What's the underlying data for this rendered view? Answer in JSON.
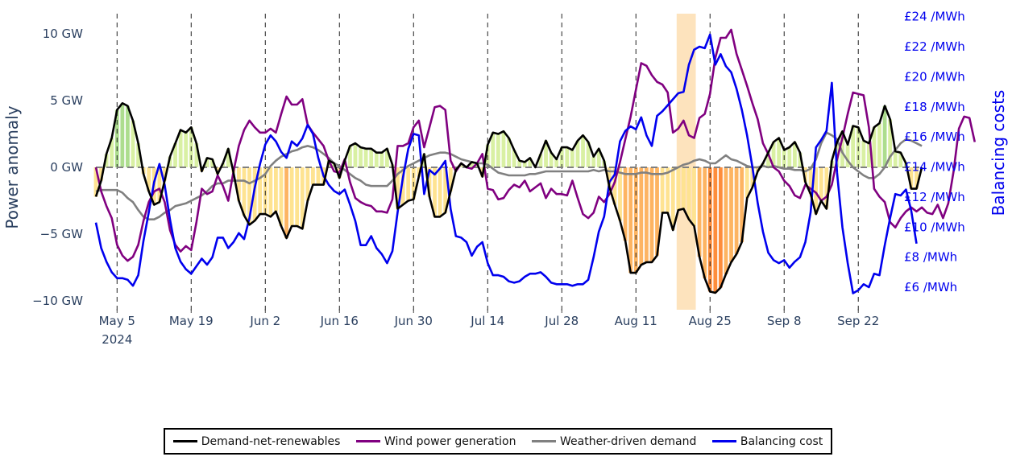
{
  "chart_data": {
    "type": "line",
    "title": "",
    "x_start_date": "2024-05-01",
    "x_step": "1 day",
    "x_ticks": [
      {
        "date": "2024-05-05",
        "label": "May 5",
        "sublabel": "2024"
      },
      {
        "date": "2024-05-19",
        "label": "May 19"
      },
      {
        "date": "2024-06-02",
        "label": "Jun 2"
      },
      {
        "date": "2024-06-16",
        "label": "Jun 16"
      },
      {
        "date": "2024-06-30",
        "label": "Jun 30"
      },
      {
        "date": "2024-07-14",
        "label": "Jul 14"
      },
      {
        "date": "2024-07-28",
        "label": "Jul 28"
      },
      {
        "date": "2024-08-11",
        "label": "Aug 11"
      },
      {
        "date": "2024-08-25",
        "label": "Aug 25"
      },
      {
        "date": "2024-09-08",
        "label": "Sep 8"
      },
      {
        "date": "2024-09-22",
        "label": "Sep 22"
      }
    ],
    "x_range": [
      "2024-05-01",
      "2024-09-30"
    ],
    "grid": "vertical dashed lines at x ticks",
    "highlight_band": {
      "from": "2024-08-19",
      "to": "2024-08-22",
      "color": "#fde3bd"
    },
    "y_left": {
      "title": "Power anomaly",
      "range": [
        -10.2,
        10.5
      ],
      "ticks": [
        {
          "value": 10,
          "label": "10 GW"
        },
        {
          "value": 5,
          "label": "5 GW"
        },
        {
          "value": 0,
          "label": "0 GW"
        },
        {
          "value": -5,
          "label": "−5 GW"
        },
        {
          "value": -10,
          "label": "−10 GW"
        }
      ]
    },
    "y_right": {
      "title": "Balancing costs",
      "range": [
        4.8,
        24.3
      ],
      "ticks": [
        {
          "value": 24,
          "label": "£24 /MWh"
        },
        {
          "value": 22,
          "label": "£22 /MWh"
        },
        {
          "value": 20,
          "label": "£20 /MWh"
        },
        {
          "value": 18,
          "label": "£18 /MWh"
        },
        {
          "value": 16,
          "label": "£16 /MWh"
        },
        {
          "value": 14,
          "label": "£14 /MWh"
        },
        {
          "value": 12,
          "label": "£12 /MWh"
        },
        {
          "value": 10,
          "label": "£10 /MWh"
        },
        {
          "value": 8,
          "label": "£8 /MWh"
        },
        {
          "value": 6,
          "label": "£6 /MWh"
        }
      ]
    },
    "fill_colors": {
      "positive_light": "#d9f0a3",
      "positive_dark": "#addd8e",
      "negative_light": "#fee391",
      "negative_mid": "#fdb462",
      "negative_dark": "#fd8d3c"
    },
    "series": [
      {
        "name": "Demand-net-renewables",
        "axis": "left",
        "color": "#000000",
        "unit": "GW",
        "values": [
          -2.2,
          -1.0,
          1.0,
          2.2,
          4.3,
          4.8,
          4.6,
          3.5,
          1.8,
          -0.5,
          -1.8,
          -2.8,
          -2.6,
          -1.0,
          0.8,
          1.8,
          2.8,
          2.6,
          3.0,
          1.8,
          -0.3,
          0.7,
          0.6,
          -0.5,
          0.3,
          1.4,
          -0.4,
          -2.5,
          -3.6,
          -4.3,
          -4.0,
          -3.5,
          -3.5,
          -3.7,
          -3.3,
          -4.4,
          -5.3,
          -4.4,
          -4.4,
          -4.6,
          -2.5,
          -1.3,
          -1.3,
          -1.3,
          0.5,
          0.3,
          -0.8,
          0.5,
          1.6,
          1.8,
          1.5,
          1.4,
          1.4,
          1.1,
          1.1,
          1.4,
          0.2,
          -3.1,
          -2.8,
          -2.5,
          -2.4,
          -0.7,
          1.0,
          -2.2,
          -3.7,
          -3.7,
          -3.4,
          -1.8,
          -0.2,
          0.3,
          0.0,
          0.4,
          0.3,
          -0.7,
          1.7,
          2.6,
          2.5,
          2.7,
          2.2,
          1.3,
          0.5,
          0.4,
          0.7,
          0.0,
          1.0,
          2.0,
          1.1,
          0.6,
          1.5,
          1.5,
          1.3,
          2.0,
          2.4,
          1.9,
          0.8,
          1.4,
          0.5,
          -1.5,
          -2.8,
          -4.0,
          -5.5,
          -7.9,
          -7.9,
          -7.3,
          -7.1,
          -7.1,
          -6.6,
          -3.4,
          -3.4,
          -4.7,
          -3.2,
          -3.1,
          -3.9,
          -4.4,
          -6.7,
          -8.3,
          -9.3,
          -9.4,
          -9.0,
          -8.0,
          -7.1,
          -6.5,
          -5.6,
          -2.3,
          -1.5,
          -0.3,
          0.3,
          1.1,
          1.9,
          2.2,
          1.3,
          1.5,
          1.9,
          1.1,
          -1.1,
          -2.0,
          -3.5,
          -2.5,
          -3.1,
          0.5,
          1.9,
          2.7,
          1.7,
          3.1,
          3.0,
          2.0,
          1.8,
          3.0,
          3.3,
          4.6,
          3.6,
          1.2,
          1.1,
          0.3,
          -1.6,
          -1.6,
          0.0
        ]
      },
      {
        "name": "Wind power generation",
        "axis": "left",
        "color": "#800080",
        "unit": "GW",
        "values": [
          0.0,
          -1.8,
          -2.9,
          -3.8,
          -5.8,
          -6.6,
          -7.0,
          -6.7,
          -5.8,
          -4.0,
          -2.6,
          -1.8,
          -1.6,
          -2.6,
          -4.7,
          -5.8,
          -6.3,
          -5.9,
          -6.2,
          -4.1,
          -1.6,
          -2.0,
          -1.8,
          -0.6,
          -1.4,
          -2.5,
          -0.3,
          1.6,
          2.8,
          3.5,
          3.0,
          2.6,
          2.6,
          2.9,
          2.6,
          4.0,
          5.3,
          4.7,
          4.7,
          5.1,
          3.2,
          2.6,
          2.1,
          1.6,
          0.5,
          -0.3,
          -0.4,
          0.6,
          -1.1,
          -2.3,
          -2.6,
          -2.8,
          -2.9,
          -3.3,
          -3.3,
          -3.4,
          -2.4,
          1.6,
          1.6,
          1.8,
          3.0,
          3.5,
          1.5,
          3.0,
          4.5,
          4.6,
          4.3,
          0.5,
          -0.3,
          0.3,
          0.0,
          -0.1,
          0.3,
          1.0,
          -1.6,
          -1.7,
          -2.4,
          -2.3,
          -1.7,
          -1.3,
          -1.5,
          -1.0,
          -1.8,
          -1.5,
          -1.2,
          -2.3,
          -1.6,
          -2.0,
          -2.0,
          -2.1,
          -1.0,
          -2.3,
          -3.5,
          -3.8,
          -3.4,
          -2.2,
          -2.6,
          -2.0,
          -1.1,
          0.4,
          2.1,
          3.8,
          5.8,
          7.8,
          7.6,
          6.9,
          6.4,
          6.2,
          5.6,
          2.6,
          2.9,
          3.5,
          2.4,
          2.2,
          3.7,
          4.0,
          5.5,
          8.2,
          9.7,
          9.7,
          10.3,
          8.5,
          7.3,
          6.1,
          4.8,
          3.6,
          1.8,
          1.0,
          0.0,
          -0.3,
          -1.0,
          -1.4,
          -2.1,
          -2.3,
          -1.3,
          -1.6,
          -1.9,
          -2.5,
          -2.2,
          -1.3,
          0.6,
          2.2,
          4.0,
          5.6,
          5.5,
          5.4,
          3.0,
          -1.6,
          -2.2,
          -2.6,
          -4.1,
          -4.5,
          -3.8,
          -3.3,
          -3.0,
          -3.3,
          -3.0,
          -3.4,
          -3.5,
          -2.8,
          -3.8,
          -2.7,
          -0.3,
          2.9,
          3.8,
          3.7,
          1.9
        ]
      },
      {
        "name": "Weather-driven demand",
        "axis": "left",
        "color": "#808080",
        "unit": "GW",
        "values": [
          -1.8,
          -1.7,
          -1.7,
          -1.7,
          -1.7,
          -1.9,
          -2.3,
          -2.6,
          -3.2,
          -3.7,
          -3.9,
          -3.9,
          -3.7,
          -3.4,
          -3.2,
          -2.9,
          -2.8,
          -2.7,
          -2.5,
          -2.3,
          -2.1,
          -1.8,
          -1.4,
          -1.2,
          -1.2,
          -1.0,
          -1.0,
          -1.0,
          -1.0,
          -1.2,
          -1.0,
          -0.8,
          -0.5,
          0.1,
          0.5,
          0.8,
          1.0,
          1.2,
          1.3,
          1.5,
          1.6,
          1.5,
          1.3,
          1.0,
          0.7,
          0.3,
          0.1,
          -0.2,
          -0.5,
          -0.8,
          -1.0,
          -1.3,
          -1.4,
          -1.4,
          -1.4,
          -1.4,
          -1.0,
          -0.5,
          -0.2,
          0.1,
          0.3,
          0.5,
          0.7,
          0.9,
          1.0,
          1.1,
          1.1,
          1.0,
          0.8,
          0.6,
          0.5,
          0.4,
          0.3,
          0.3,
          0.2,
          -0.1,
          -0.4,
          -0.5,
          -0.6,
          -0.6,
          -0.6,
          -0.6,
          -0.5,
          -0.5,
          -0.4,
          -0.3,
          -0.3,
          -0.3,
          -0.3,
          -0.3,
          -0.3,
          -0.3,
          -0.3,
          -0.3,
          -0.2,
          -0.3,
          -0.2,
          -0.3,
          -0.3,
          -0.4,
          -0.5,
          -0.5,
          -0.5,
          -0.4,
          -0.4,
          -0.5,
          -0.5,
          -0.5,
          -0.4,
          -0.2,
          0.0,
          0.2,
          0.3,
          0.5,
          0.6,
          0.5,
          0.3,
          0.3,
          0.6,
          0.9,
          0.6,
          0.5,
          0.3,
          0.1,
          0.0,
          0.0,
          0.1,
          0.0,
          0.1,
          0.0,
          -0.1,
          -0.1,
          -0.2,
          -0.2,
          -0.3,
          -0.1,
          0.6,
          1.8,
          2.6,
          2.4,
          2.1,
          1.1,
          0.5,
          0.0,
          -0.3,
          -0.6,
          -0.8,
          -0.8,
          -0.5,
          0.0,
          0.8,
          1.3,
          1.8,
          2.1,
          2.0,
          1.8,
          1.6
        ]
      },
      {
        "name": "Balancing cost",
        "axis": "right",
        "color": "#0000ee",
        "unit": "£/MWh",
        "values": [
          10.3,
          8.6,
          7.7,
          7.0,
          6.6,
          6.6,
          6.5,
          6.1,
          6.8,
          9.1,
          11.0,
          13.0,
          14.2,
          12.8,
          10.5,
          8.6,
          7.7,
          7.2,
          6.9,
          7.4,
          7.9,
          7.5,
          8.0,
          9.3,
          9.3,
          8.6,
          9.0,
          9.6,
          9.2,
          10.6,
          12.6,
          14.2,
          15.5,
          16.1,
          15.7,
          15.0,
          14.6,
          15.7,
          15.4,
          15.9,
          16.8,
          16.2,
          14.6,
          13.4,
          12.8,
          12.4,
          12.2,
          12.5,
          11.5,
          10.4,
          8.8,
          8.8,
          9.4,
          8.6,
          8.2,
          7.6,
          8.4,
          11.0,
          13.3,
          15.2,
          16.2,
          16.1,
          12.2,
          13.8,
          13.5,
          13.9,
          14.4,
          11.2,
          9.4,
          9.3,
          9.0,
          8.1,
          8.7,
          9.0,
          7.6,
          6.8,
          6.8,
          6.7,
          6.4,
          6.3,
          6.4,
          6.7,
          6.9,
          6.9,
          7.0,
          6.7,
          6.3,
          6.2,
          6.2,
          6.2,
          6.1,
          6.2,
          6.2,
          6.5,
          8.0,
          9.7,
          10.7,
          13.0,
          13.5,
          15.7,
          16.4,
          16.7,
          16.5,
          17.3,
          16.1,
          15.4,
          17.4,
          17.7,
          18.1,
          18.5,
          18.9,
          19.0,
          20.8,
          21.8,
          22.0,
          21.9,
          22.8,
          20.8,
          21.5,
          20.7,
          20.3,
          19.2,
          17.8,
          16.1,
          14.0,
          11.6,
          9.7,
          8.3,
          7.8,
          7.6,
          7.8,
          7.3,
          7.7,
          8.0,
          9.0,
          11.0,
          15.3,
          15.8,
          16.4,
          19.6,
          13.6,
          10.0,
          7.6,
          5.6,
          5.8,
          6.2,
          6.0,
          6.9,
          6.8,
          8.8,
          10.6,
          12.2,
          12.1,
          12.5,
          11.1,
          8.9
        ]
      }
    ]
  },
  "legend": {
    "items": [
      {
        "label": "Demand-net-renewables",
        "color": "#000000"
      },
      {
        "label": "Wind power generation",
        "color": "#800080"
      },
      {
        "label": "Weather-driven demand",
        "color": "#808080"
      },
      {
        "label": "Balancing cost",
        "color": "#0000ee"
      }
    ]
  }
}
